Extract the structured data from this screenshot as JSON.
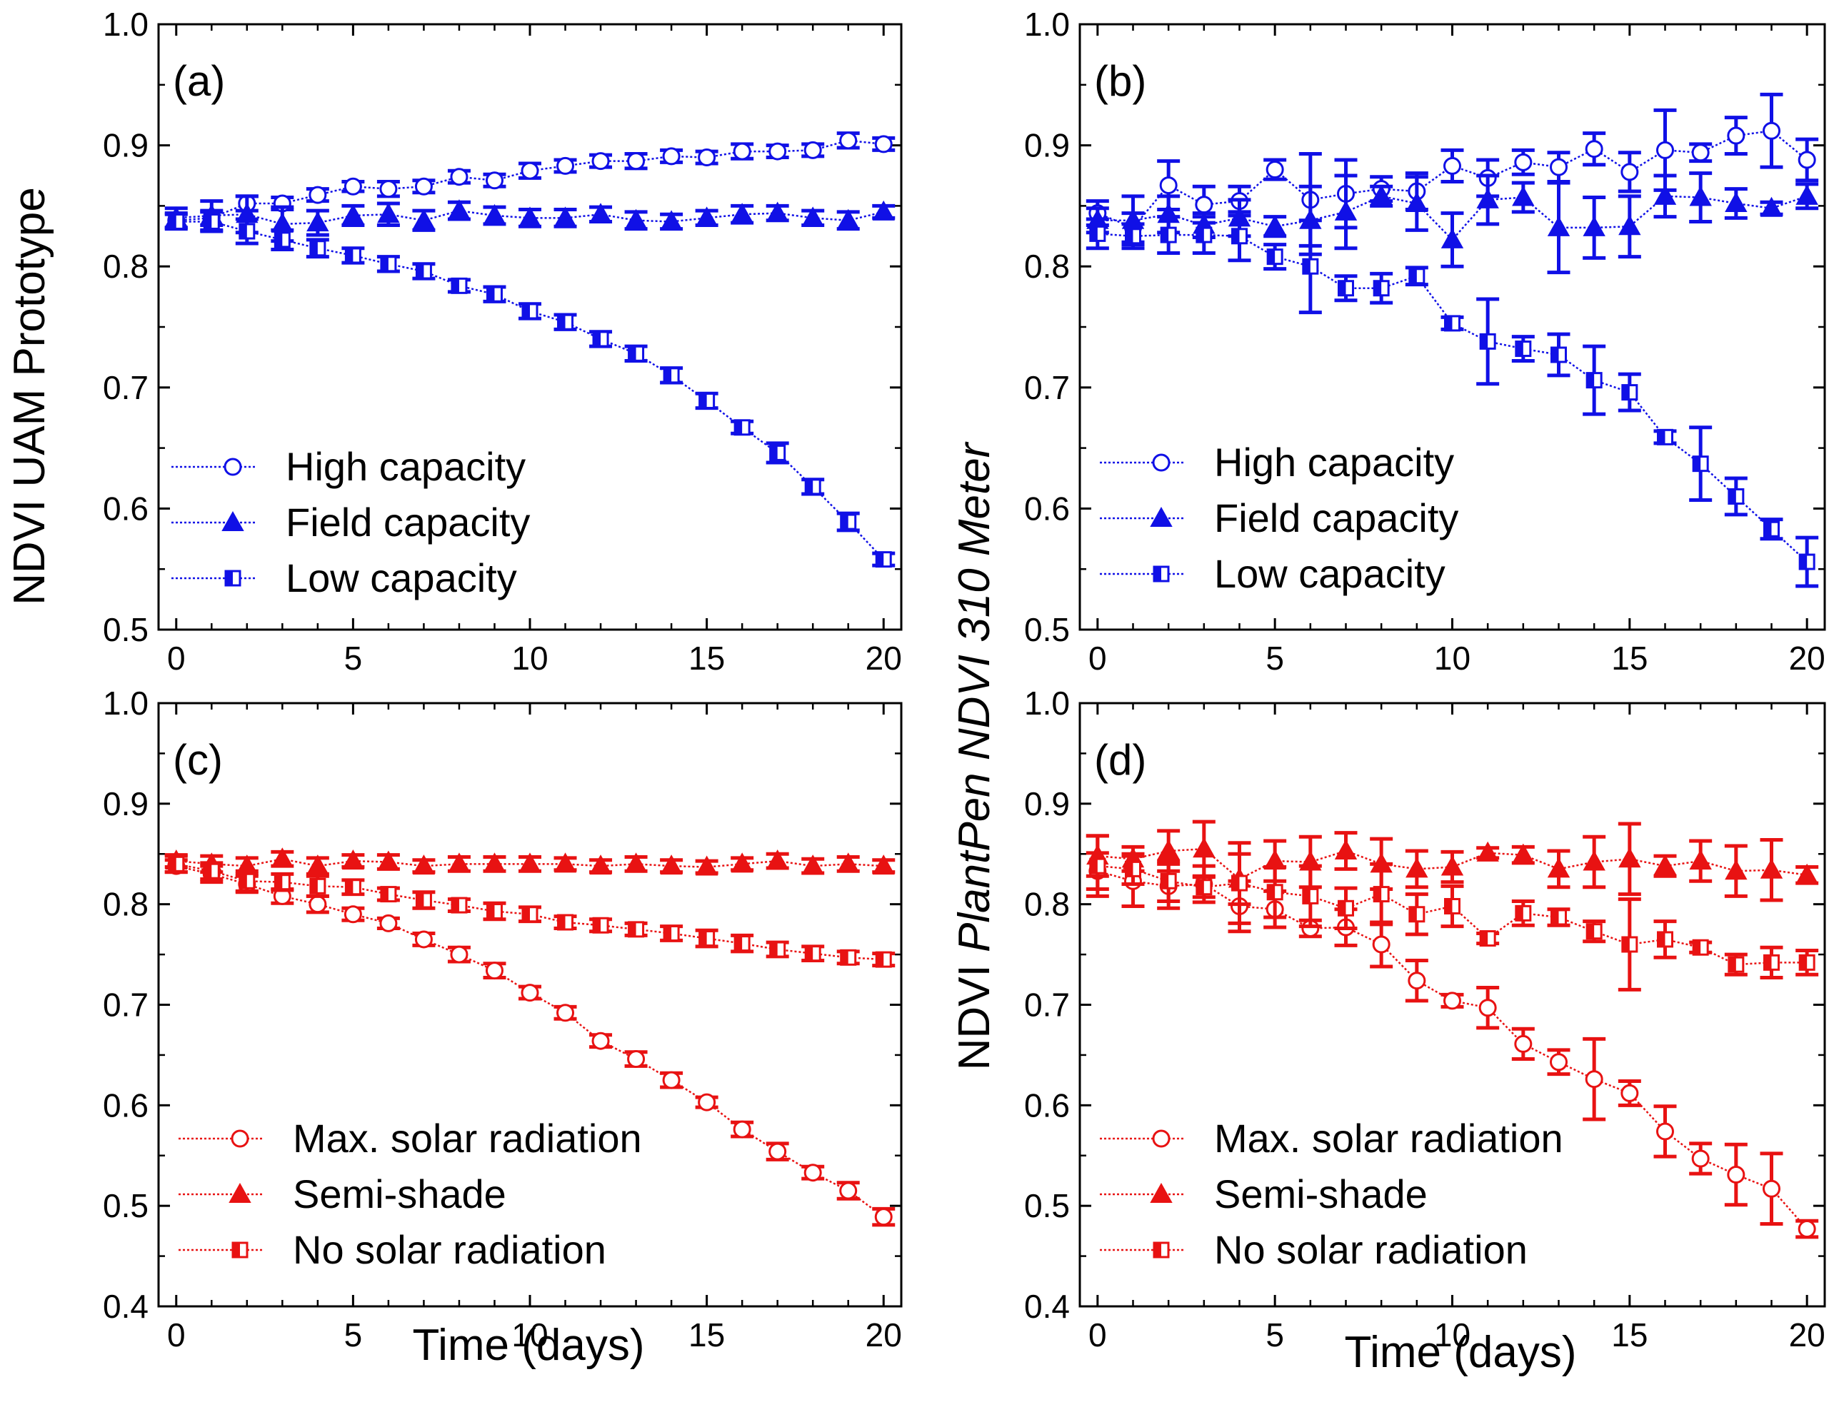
{
  "figure": {
    "y_axis_left_title": "NDVI UAM Prototype",
    "y_axis_right_title_prefix": "NDVI ",
    "y_axis_right_title_italic": "PlantPen NDVI 310 Meter",
    "x_axis_title": "Time (days)"
  },
  "colors": {
    "blue": "#1010e6",
    "red": "#e81212"
  },
  "chart_data": [
    {
      "id": "a",
      "label": "(a)",
      "type": "line",
      "color": "#1010e6",
      "ylim": [
        0.5,
        1.0
      ],
      "yticks": [
        0.5,
        0.6,
        0.7,
        0.8,
        0.9,
        1.0
      ],
      "xlim": [
        -0.5,
        20.5
      ],
      "xticks": [
        0,
        5,
        10,
        15,
        20
      ],
      "x": [
        0,
        1,
        2,
        3,
        4,
        5,
        6,
        7,
        8,
        9,
        10,
        11,
        12,
        13,
        14,
        15,
        16,
        17,
        18,
        19,
        20
      ],
      "legend_position": "lower-left",
      "series": [
        {
          "name": "High capacity",
          "marker": "circle-open",
          "values": [
            0.838,
            0.84,
            0.852,
            0.852,
            0.859,
            0.866,
            0.864,
            0.866,
            0.874,
            0.871,
            0.879,
            0.883,
            0.887,
            0.887,
            0.891,
            0.89,
            0.895,
            0.895,
            0.896,
            0.904,
            0.901
          ],
          "errors": [
            0.006,
            0.006,
            0.006,
            0.005,
            0.005,
            0.004,
            0.006,
            0.005,
            0.005,
            0.005,
            0.006,
            0.005,
            0.005,
            0.006,
            0.005,
            0.005,
            0.006,
            0.005,
            0.005,
            0.006,
            0.005
          ]
        },
        {
          "name": "Field capacity",
          "marker": "triangle-filled",
          "values": [
            0.84,
            0.842,
            0.843,
            0.835,
            0.836,
            0.842,
            0.843,
            0.838,
            0.846,
            0.842,
            0.84,
            0.84,
            0.843,
            0.838,
            0.837,
            0.84,
            0.843,
            0.844,
            0.84,
            0.838,
            0.845
          ],
          "errors": [
            0.008,
            0.012,
            0.015,
            0.014,
            0.01,
            0.008,
            0.009,
            0.008,
            0.007,
            0.007,
            0.007,
            0.007,
            0.006,
            0.007,
            0.006,
            0.006,
            0.007,
            0.006,
            0.006,
            0.007,
            0.005
          ]
        },
        {
          "name": "Low capacity",
          "marker": "square-half",
          "values": [
            0.837,
            0.837,
            0.829,
            0.822,
            0.815,
            0.809,
            0.802,
            0.796,
            0.784,
            0.777,
            0.763,
            0.754,
            0.74,
            0.728,
            0.71,
            0.689,
            0.667,
            0.646,
            0.618,
            0.589,
            0.558
          ],
          "errors": [
            0.006,
            0.008,
            0.01,
            0.008,
            0.007,
            0.006,
            0.006,
            0.006,
            0.005,
            0.006,
            0.006,
            0.006,
            0.006,
            0.006,
            0.006,
            0.006,
            0.005,
            0.008,
            0.006,
            0.007,
            0.005
          ]
        }
      ]
    },
    {
      "id": "b",
      "label": "(b)",
      "type": "line",
      "color": "#1010e6",
      "ylim": [
        0.5,
        1.0
      ],
      "yticks": [
        0.5,
        0.6,
        0.7,
        0.8,
        0.9,
        1.0
      ],
      "xlim": [
        -0.5,
        20.5
      ],
      "xticks": [
        0,
        5,
        10,
        15,
        20
      ],
      "x": [
        0,
        1,
        2,
        3,
        4,
        5,
        6,
        7,
        8,
        9,
        10,
        11,
        12,
        13,
        14,
        15,
        16,
        17,
        18,
        19,
        20
      ],
      "legend_position": "lower-left",
      "series": [
        {
          "name": "High capacity",
          "marker": "circle-open",
          "values": [
            0.844,
            0.832,
            0.867,
            0.851,
            0.854,
            0.88,
            0.855,
            0.86,
            0.864,
            0.862,
            0.883,
            0.873,
            0.886,
            0.882,
            0.897,
            0.878,
            0.896,
            0.894,
            0.908,
            0.912,
            0.888
          ],
          "errors": [
            0.01,
            0.012,
            0.02,
            0.015,
            0.012,
            0.008,
            0.038,
            0.028,
            0.01,
            0.015,
            0.013,
            0.015,
            0.01,
            0.012,
            0.013,
            0.016,
            0.033,
            0.007,
            0.015,
            0.03,
            0.017
          ]
        },
        {
          "name": "Field capacity",
          "marker": "triangle-filled",
          "values": [
            0.838,
            0.838,
            0.843,
            0.834,
            0.84,
            0.833,
            0.838,
            0.845,
            0.858,
            0.852,
            0.822,
            0.855,
            0.857,
            0.832,
            0.832,
            0.833,
            0.858,
            0.857,
            0.852,
            0.848,
            0.858
          ],
          "errors": [
            0.01,
            0.02,
            0.015,
            0.01,
            0.015,
            0.008,
            0.028,
            0.03,
            0.008,
            0.022,
            0.022,
            0.02,
            0.012,
            0.037,
            0.025,
            0.025,
            0.017,
            0.02,
            0.012,
            0.005,
            0.01
          ]
        },
        {
          "name": "Low capacity",
          "marker": "square-half",
          "values": [
            0.827,
            0.825,
            0.826,
            0.826,
            0.825,
            0.808,
            0.8,
            0.782,
            0.782,
            0.792,
            0.753,
            0.738,
            0.732,
            0.727,
            0.706,
            0.696,
            0.659,
            0.637,
            0.61,
            0.583,
            0.556
          ],
          "errors": [
            0.012,
            0.01,
            0.015,
            0.015,
            0.02,
            0.01,
            0.038,
            0.01,
            0.012,
            0.007,
            0.005,
            0.035,
            0.01,
            0.017,
            0.028,
            0.015,
            0.005,
            0.03,
            0.015,
            0.008,
            0.02
          ]
        }
      ]
    },
    {
      "id": "c",
      "label": "(c)",
      "type": "line",
      "color": "#e81212",
      "ylim": [
        0.4,
        1.0
      ],
      "yticks": [
        0.4,
        0.5,
        0.6,
        0.7,
        0.8,
        0.9,
        1.0
      ],
      "xlim": [
        -0.5,
        20.5
      ],
      "xticks": [
        0,
        5,
        10,
        15,
        20
      ],
      "x": [
        0,
        1,
        2,
        3,
        4,
        5,
        6,
        7,
        8,
        9,
        10,
        11,
        12,
        13,
        14,
        15,
        16,
        17,
        18,
        19,
        20
      ],
      "legend_position": "lower-left",
      "series": [
        {
          "name": "Max. solar radiation",
          "marker": "circle-open",
          "values": [
            0.838,
            0.83,
            0.82,
            0.808,
            0.8,
            0.79,
            0.781,
            0.765,
            0.75,
            0.734,
            0.712,
            0.692,
            0.664,
            0.646,
            0.625,
            0.603,
            0.576,
            0.554,
            0.533,
            0.515,
            0.489
          ],
          "errors": [
            0.006,
            0.008,
            0.008,
            0.007,
            0.008,
            0.006,
            0.005,
            0.006,
            0.007,
            0.007,
            0.006,
            0.006,
            0.006,
            0.007,
            0.007,
            0.005,
            0.007,
            0.008,
            0.006,
            0.008,
            0.008
          ]
        },
        {
          "name": "Semi-shade",
          "marker": "triangle-filled",
          "values": [
            0.843,
            0.84,
            0.838,
            0.845,
            0.838,
            0.843,
            0.842,
            0.838,
            0.84,
            0.84,
            0.84,
            0.84,
            0.838,
            0.84,
            0.838,
            0.837,
            0.84,
            0.843,
            0.838,
            0.84,
            0.838
          ],
          "errors": [
            0.006,
            0.008,
            0.008,
            0.007,
            0.008,
            0.006,
            0.007,
            0.006,
            0.007,
            0.007,
            0.007,
            0.006,
            0.006,
            0.007,
            0.006,
            0.006,
            0.006,
            0.007,
            0.007,
            0.007,
            0.006
          ]
        },
        {
          "name": "No solar radiation",
          "marker": "square-half",
          "values": [
            0.84,
            0.833,
            0.823,
            0.822,
            0.818,
            0.817,
            0.81,
            0.804,
            0.799,
            0.793,
            0.79,
            0.782,
            0.779,
            0.775,
            0.771,
            0.766,
            0.761,
            0.755,
            0.751,
            0.747,
            0.745
          ],
          "errors": [
            0.008,
            0.008,
            0.01,
            0.008,
            0.01,
            0.007,
            0.006,
            0.008,
            0.006,
            0.008,
            0.007,
            0.006,
            0.006,
            0.006,
            0.007,
            0.008,
            0.008,
            0.007,
            0.007,
            0.006,
            0.006
          ]
        }
      ]
    },
    {
      "id": "d",
      "label": "(d)",
      "type": "line",
      "color": "#e81212",
      "ylim": [
        0.4,
        1.0
      ],
      "yticks": [
        0.4,
        0.5,
        0.6,
        0.7,
        0.8,
        0.9,
        1.0
      ],
      "xlim": [
        -0.5,
        20.5
      ],
      "xticks": [
        0,
        5,
        10,
        15,
        20
      ],
      "x": [
        0,
        1,
        2,
        3,
        4,
        5,
        6,
        7,
        8,
        9,
        10,
        11,
        12,
        13,
        14,
        15,
        16,
        17,
        18,
        19,
        20
      ],
      "legend_position": "lower-left",
      "series": [
        {
          "name": "Max. solar radiation",
          "marker": "circle-open",
          "values": [
            0.833,
            0.823,
            0.818,
            0.82,
            0.798,
            0.795,
            0.776,
            0.777,
            0.76,
            0.724,
            0.704,
            0.697,
            0.661,
            0.643,
            0.626,
            0.612,
            0.574,
            0.547,
            0.531,
            0.517,
            0.477
          ],
          "errors": [
            0.018,
            0.025,
            0.022,
            0.018,
            0.025,
            0.018,
            0.008,
            0.018,
            0.022,
            0.02,
            0.006,
            0.02,
            0.015,
            0.012,
            0.04,
            0.012,
            0.025,
            0.015,
            0.03,
            0.035,
            0.008
          ]
        },
        {
          "name": "Semi-shade",
          "marker": "triangle-filled",
          "values": [
            0.848,
            0.845,
            0.853,
            0.855,
            0.825,
            0.843,
            0.842,
            0.853,
            0.84,
            0.835,
            0.837,
            0.851,
            0.849,
            0.835,
            0.842,
            0.845,
            0.838,
            0.843,
            0.833,
            0.834,
            0.829
          ],
          "errors": [
            0.02,
            0.012,
            0.02,
            0.027,
            0.025,
            0.02,
            0.025,
            0.018,
            0.025,
            0.018,
            0.015,
            0.005,
            0.008,
            0.018,
            0.025,
            0.035,
            0.01,
            0.02,
            0.025,
            0.03,
            0.008
          ]
        },
        {
          "name": "No solar radiation",
          "marker": "square-half",
          "values": [
            0.838,
            0.835,
            0.823,
            0.817,
            0.821,
            0.812,
            0.808,
            0.796,
            0.81,
            0.79,
            0.798,
            0.766,
            0.791,
            0.787,
            0.773,
            0.76,
            0.765,
            0.757,
            0.74,
            0.742,
            0.742
          ],
          "errors": [
            0.03,
            0.015,
            0.02,
            0.01,
            0.04,
            0.025,
            0.03,
            0.02,
            0.03,
            0.02,
            0.02,
            0.005,
            0.012,
            0.008,
            0.01,
            0.045,
            0.018,
            0.005,
            0.01,
            0.015,
            0.012
          ]
        }
      ]
    }
  ]
}
